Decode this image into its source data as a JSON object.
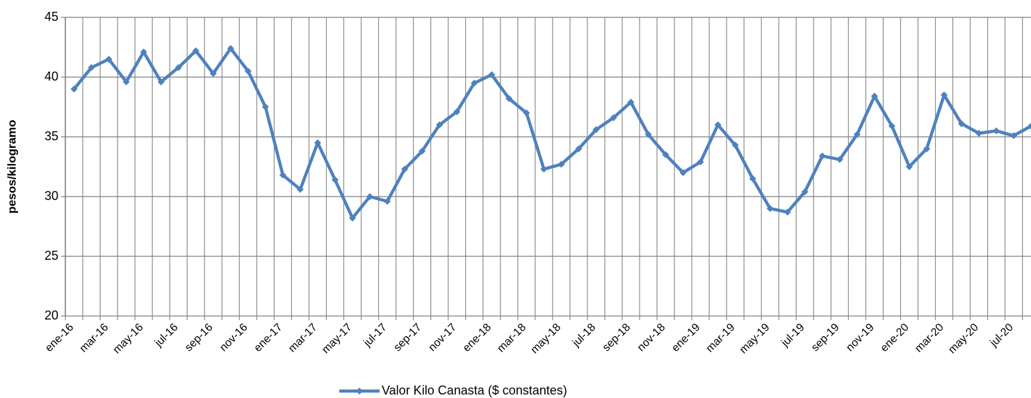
{
  "chart_data": {
    "type": "line",
    "y_label": "pesos/kilogramo",
    "categories": [
      "ene-16",
      null,
      "mar-16",
      null,
      "may-16",
      null,
      "jul-16",
      null,
      "sep-16",
      null,
      "nov-16",
      null,
      "ene-17",
      null,
      "mar-17",
      null,
      "may-17",
      null,
      "jul-17",
      null,
      "sep-17",
      null,
      "nov-17",
      null,
      "ene-18",
      null,
      "mar-18",
      null,
      "may-18",
      null,
      "jul-18",
      null,
      "sep-18",
      null,
      "nov-18",
      null,
      "ene-19",
      null,
      "mar-19",
      null,
      "may-19",
      null,
      "jul-19",
      null,
      "sep-19",
      null,
      "nov-19",
      null,
      "ene-20",
      null,
      "mar-20",
      null,
      "may-20",
      null,
      "jul-20",
      null
    ],
    "series": [
      {
        "name": "Valor Kilo Canasta ($ constantes)",
        "color": "#4f81bd",
        "values": [
          39.0,
          40.8,
          41.5,
          39.6,
          42.1,
          39.6,
          40.8,
          42.2,
          40.3,
          42.4,
          40.5,
          37.5,
          31.8,
          30.6,
          34.5,
          31.4,
          28.2,
          30.0,
          29.6,
          32.3,
          33.8,
          36.0,
          37.1,
          39.5,
          40.2,
          38.2,
          37.0,
          32.3,
          32.7,
          34.0,
          35.6,
          36.6,
          37.9,
          35.2,
          33.5,
          32.0,
          32.9,
          36.0,
          34.3,
          31.5,
          29.0,
          28.7,
          30.4,
          33.4,
          33.1,
          35.2,
          38.4,
          35.9,
          32.5,
          34.0,
          38.5,
          36.1,
          35.3,
          35.5,
          35.1,
          35.9
        ]
      }
    ],
    "ylim": [
      20,
      45
    ],
    "yticks": [
      20,
      25,
      30,
      35,
      40,
      45
    ],
    "grid": true,
    "legend": "bottom"
  }
}
